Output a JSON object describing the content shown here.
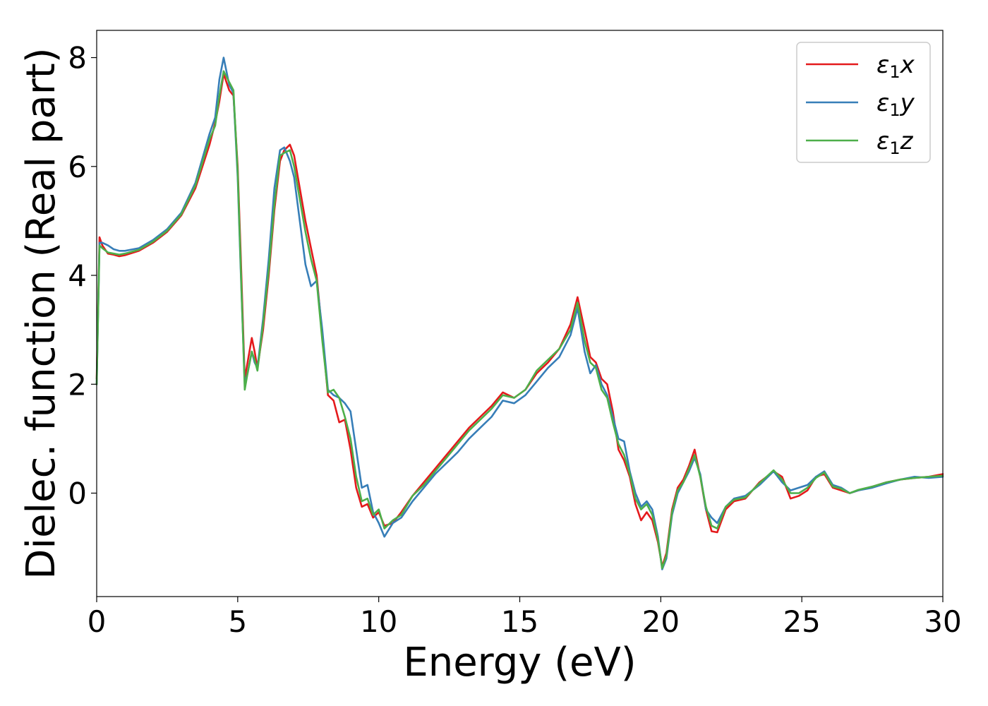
{
  "chart_data": {
    "type": "line",
    "title": "",
    "xlabel": "Energy (eV)",
    "ylabel": "Dielec. function (Real part)",
    "xlim": [
      0,
      30
    ],
    "ylim": [
      -1.9,
      8.5
    ],
    "xticks": [
      0,
      5,
      10,
      15,
      20,
      25,
      30
    ],
    "yticks": [
      0,
      2,
      4,
      6,
      8
    ],
    "xtick_labels": [
      "0",
      "5",
      "10",
      "15",
      "20",
      "25",
      "30"
    ],
    "ytick_labels": [
      "0",
      "2",
      "4",
      "6",
      "8"
    ],
    "grid": false,
    "legend_position": "top-right",
    "series": [
      {
        "name": "ε1x",
        "legend_base": "ε",
        "legend_sub": "1",
        "legend_var": "x",
        "color": "#e41a1c",
        "x": [
          0,
          0.1,
          0.2,
          0.4,
          0.6,
          0.8,
          1.0,
          1.5,
          2.0,
          2.5,
          3.0,
          3.5,
          4.0,
          4.2,
          4.35,
          4.5,
          4.7,
          4.85,
          5.0,
          5.1,
          5.25,
          5.35,
          5.5,
          5.6,
          5.7,
          5.9,
          6.1,
          6.3,
          6.5,
          6.65,
          6.85,
          7.0,
          7.2,
          7.4,
          7.6,
          7.8,
          8.0,
          8.2,
          8.4,
          8.6,
          8.8,
          9.0,
          9.2,
          9.4,
          9.6,
          9.8,
          10.0,
          10.2,
          10.5,
          10.8,
          11.2,
          11.6,
          12.0,
          12.4,
          12.8,
          13.2,
          13.6,
          14.0,
          14.4,
          14.8,
          15.2,
          15.6,
          16.0,
          16.4,
          16.8,
          17.05,
          17.3,
          17.5,
          17.7,
          17.9,
          18.1,
          18.3,
          18.5,
          18.7,
          18.9,
          19.1,
          19.3,
          19.5,
          19.7,
          19.9,
          20.05,
          20.2,
          20.4,
          20.6,
          20.8,
          21.0,
          21.2,
          21.4,
          21.6,
          21.8,
          22.0,
          22.3,
          22.6,
          23.0,
          23.5,
          24.0,
          24.3,
          24.6,
          24.9,
          25.2,
          25.5,
          25.8,
          26.1,
          26.4,
          26.7,
          27.0,
          27.5,
          28.0,
          28.5,
          29.0,
          29.5,
          30.0
        ],
        "y": [
          2.1,
          4.7,
          4.55,
          4.4,
          4.38,
          4.35,
          4.37,
          4.45,
          4.6,
          4.8,
          5.1,
          5.6,
          6.4,
          6.8,
          7.2,
          7.7,
          7.4,
          7.3,
          6.0,
          4.5,
          2.1,
          2.4,
          2.85,
          2.6,
          2.3,
          3.0,
          4.0,
          5.2,
          6.1,
          6.3,
          6.4,
          6.2,
          5.6,
          5.0,
          4.5,
          4.0,
          2.9,
          1.8,
          1.7,
          1.3,
          1.35,
          0.8,
          0.1,
          -0.25,
          -0.2,
          -0.45,
          -0.35,
          -0.6,
          -0.55,
          -0.35,
          -0.05,
          0.2,
          0.45,
          0.7,
          0.95,
          1.2,
          1.4,
          1.6,
          1.85,
          1.75,
          1.9,
          2.2,
          2.4,
          2.65,
          3.1,
          3.6,
          3.0,
          2.5,
          2.4,
          2.1,
          2.0,
          1.5,
          0.8,
          0.6,
          0.3,
          -0.2,
          -0.5,
          -0.35,
          -0.5,
          -0.9,
          -1.35,
          -1.1,
          -0.3,
          0.1,
          0.25,
          0.5,
          0.8,
          0.3,
          -0.3,
          -0.7,
          -0.72,
          -0.3,
          -0.15,
          -0.1,
          0.2,
          0.4,
          0.3,
          -0.1,
          -0.05,
          0.05,
          0.3,
          0.35,
          0.1,
          0.05,
          0.0,
          0.05,
          0.12,
          0.2,
          0.25,
          0.28,
          0.3,
          0.35
        ]
      },
      {
        "name": "ε1y",
        "legend_base": "ε",
        "legend_sub": "1",
        "legend_var": "y",
        "color": "#377eb8",
        "x": [
          0,
          0.1,
          0.2,
          0.4,
          0.6,
          0.8,
          1.0,
          1.5,
          2.0,
          2.5,
          3.0,
          3.5,
          4.0,
          4.2,
          4.35,
          4.5,
          4.7,
          4.85,
          5.0,
          5.1,
          5.25,
          5.35,
          5.5,
          5.6,
          5.7,
          5.9,
          6.1,
          6.3,
          6.5,
          6.65,
          6.85,
          7.0,
          7.2,
          7.4,
          7.6,
          7.8,
          8.0,
          8.2,
          8.4,
          8.6,
          8.8,
          9.0,
          9.2,
          9.4,
          9.6,
          9.8,
          10.0,
          10.2,
          10.5,
          10.8,
          11.2,
          11.6,
          12.0,
          12.4,
          12.8,
          13.2,
          13.6,
          14.0,
          14.4,
          14.8,
          15.2,
          15.6,
          16.0,
          16.4,
          16.8,
          17.05,
          17.3,
          17.5,
          17.7,
          17.9,
          18.1,
          18.3,
          18.5,
          18.7,
          18.9,
          19.1,
          19.3,
          19.5,
          19.7,
          19.9,
          20.05,
          20.2,
          20.4,
          20.6,
          20.8,
          21.0,
          21.2,
          21.4,
          21.6,
          21.8,
          22.0,
          22.3,
          22.6,
          23.0,
          23.5,
          24.0,
          24.3,
          24.6,
          24.9,
          25.2,
          25.5,
          25.8,
          26.1,
          26.4,
          26.7,
          27.0,
          27.5,
          28.0,
          28.5,
          29.0,
          29.5,
          30.0
        ],
        "y": [
          2.0,
          4.6,
          4.6,
          4.55,
          4.48,
          4.45,
          4.45,
          4.5,
          4.65,
          4.85,
          5.15,
          5.7,
          6.6,
          6.9,
          7.6,
          8.0,
          7.5,
          7.35,
          5.8,
          4.2,
          2.0,
          2.2,
          2.6,
          2.4,
          2.3,
          3.2,
          4.3,
          5.6,
          6.3,
          6.35,
          6.1,
          5.8,
          5.0,
          4.2,
          3.8,
          3.9,
          3.0,
          1.9,
          1.8,
          1.75,
          1.65,
          1.5,
          0.8,
          0.1,
          0.15,
          -0.35,
          -0.55,
          -0.8,
          -0.55,
          -0.45,
          -0.15,
          0.1,
          0.35,
          0.55,
          0.75,
          1.0,
          1.2,
          1.4,
          1.7,
          1.65,
          1.8,
          2.05,
          2.3,
          2.5,
          2.9,
          3.4,
          2.6,
          2.2,
          2.35,
          2.0,
          1.8,
          1.4,
          1.0,
          0.95,
          0.4,
          0.0,
          -0.25,
          -0.15,
          -0.3,
          -0.8,
          -1.4,
          -1.2,
          -0.4,
          0.0,
          0.2,
          0.4,
          0.65,
          0.35,
          -0.3,
          -0.45,
          -0.55,
          -0.25,
          -0.1,
          -0.05,
          0.15,
          0.4,
          0.2,
          0.05,
          0.1,
          0.15,
          0.3,
          0.4,
          0.15,
          0.1,
          0.0,
          0.05,
          0.1,
          0.18,
          0.25,
          0.3,
          0.28,
          0.3
        ]
      },
      {
        "name": "ε1z",
        "legend_base": "ε",
        "legend_sub": "1",
        "legend_var": "z",
        "color": "#4daf4a",
        "x": [
          0,
          0.1,
          0.2,
          0.4,
          0.6,
          0.8,
          1.0,
          1.5,
          2.0,
          2.5,
          3.0,
          3.5,
          4.0,
          4.2,
          4.35,
          4.5,
          4.7,
          4.85,
          5.0,
          5.1,
          5.25,
          5.35,
          5.5,
          5.6,
          5.7,
          5.9,
          6.1,
          6.3,
          6.5,
          6.65,
          6.85,
          7.0,
          7.2,
          7.4,
          7.6,
          7.8,
          8.0,
          8.2,
          8.4,
          8.6,
          8.8,
          9.0,
          9.2,
          9.4,
          9.6,
          9.8,
          10.0,
          10.2,
          10.5,
          10.8,
          11.2,
          11.6,
          12.0,
          12.4,
          12.8,
          13.2,
          13.6,
          14.0,
          14.4,
          14.8,
          15.2,
          15.6,
          16.0,
          16.4,
          16.8,
          17.05,
          17.3,
          17.5,
          17.7,
          17.9,
          18.1,
          18.3,
          18.5,
          18.7,
          18.9,
          19.1,
          19.3,
          19.5,
          19.7,
          19.9,
          20.05,
          20.2,
          20.4,
          20.6,
          20.8,
          21.0,
          21.2,
          21.4,
          21.6,
          21.8,
          22.0,
          22.3,
          22.6,
          23.0,
          23.5,
          24.0,
          24.3,
          24.6,
          24.9,
          25.2,
          25.5,
          25.8,
          26.1,
          26.4,
          26.7,
          27.0,
          27.5,
          28.0,
          28.5,
          29.0,
          29.5,
          30.0
        ],
        "y": [
          2.0,
          4.55,
          4.5,
          4.42,
          4.4,
          4.38,
          4.4,
          4.47,
          4.62,
          4.82,
          5.12,
          5.65,
          6.5,
          6.75,
          7.3,
          7.75,
          7.55,
          7.4,
          5.9,
          4.3,
          1.9,
          2.2,
          2.6,
          2.45,
          2.25,
          3.1,
          4.1,
          5.3,
          6.2,
          6.25,
          6.3,
          6.0,
          5.4,
          4.8,
          4.3,
          3.9,
          2.8,
          1.85,
          1.9,
          1.75,
          1.4,
          1.0,
          0.3,
          -0.15,
          -0.1,
          -0.4,
          -0.3,
          -0.65,
          -0.5,
          -0.4,
          -0.05,
          0.15,
          0.4,
          0.65,
          0.9,
          1.15,
          1.35,
          1.55,
          1.8,
          1.75,
          1.9,
          2.25,
          2.45,
          2.65,
          3.0,
          3.5,
          2.8,
          2.4,
          2.3,
          1.9,
          1.75,
          1.3,
          0.9,
          0.7,
          0.35,
          -0.1,
          -0.3,
          -0.2,
          -0.4,
          -0.85,
          -1.38,
          -1.15,
          -0.35,
          0.05,
          0.2,
          0.45,
          0.7,
          0.3,
          -0.25,
          -0.6,
          -0.65,
          -0.25,
          -0.12,
          -0.08,
          0.18,
          0.42,
          0.25,
          0.0,
          0.0,
          0.1,
          0.28,
          0.38,
          0.12,
          0.08,
          0.0,
          0.06,
          0.12,
          0.2,
          0.25,
          0.28,
          0.3,
          0.32
        ]
      }
    ]
  }
}
